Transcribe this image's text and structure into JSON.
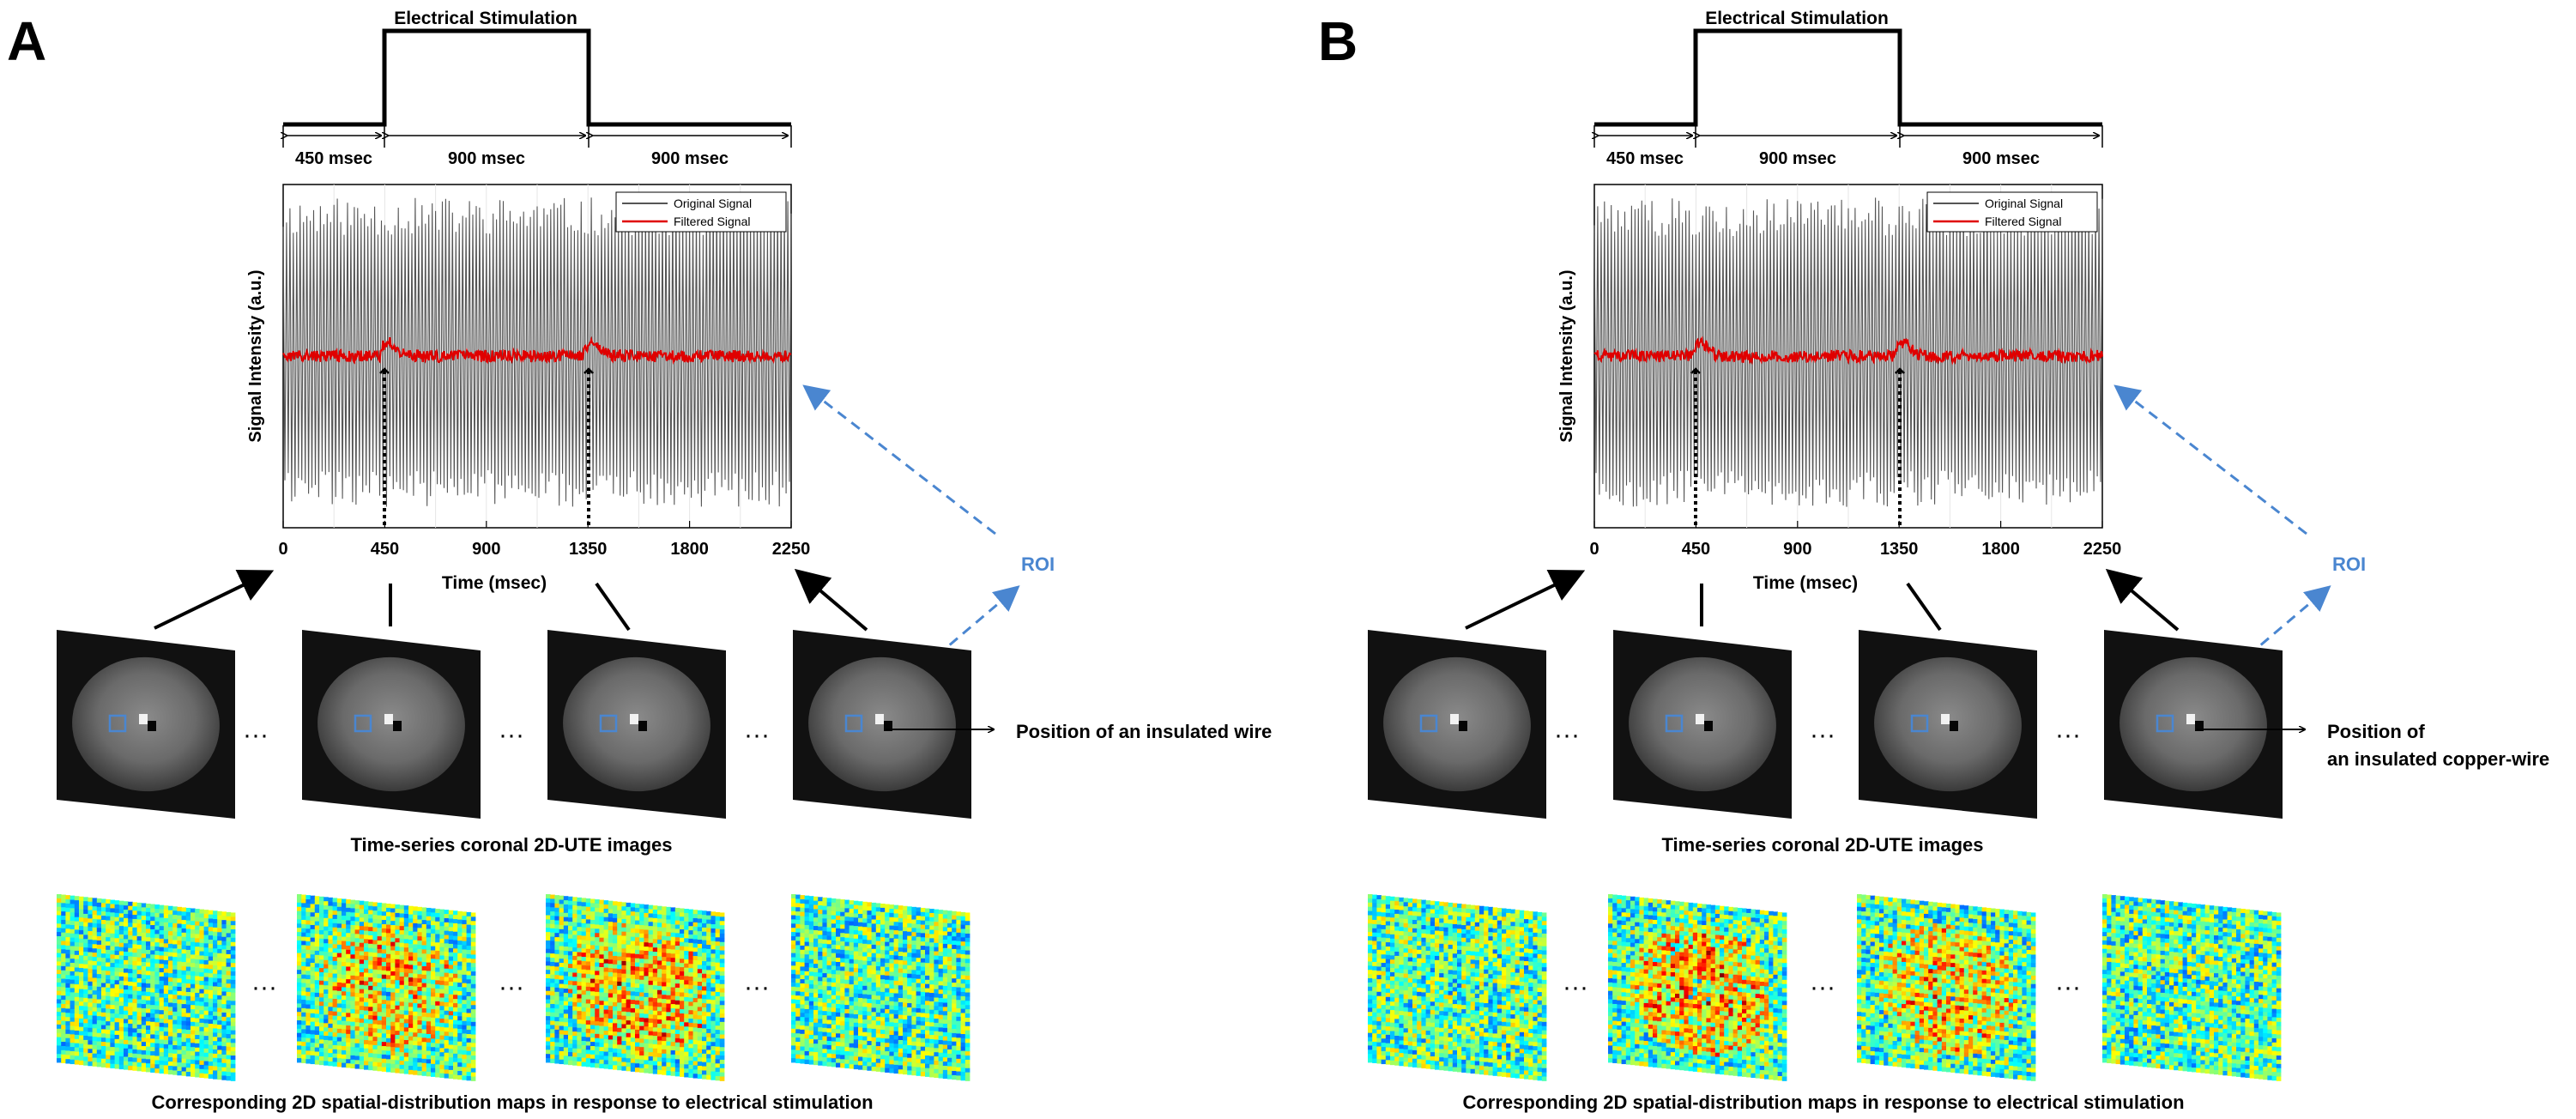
{
  "panels": [
    {
      "letter": "A",
      "stim_title": "Electrical Stimulation",
      "segments": [
        "450 msec",
        "900 msec",
        "900 msec"
      ],
      "legend": [
        "Original Signal",
        "Filtered Signal"
      ],
      "ylabel": "Signal Intensity (a.u.)",
      "xlabel": "Time (msec)",
      "xticks": [
        "0",
        "450",
        "900",
        "1350",
        "1800",
        "2250"
      ],
      "roi_label": "ROI",
      "wire_label_lines": [
        "Position of an insulated wire"
      ],
      "ute_caption": "Time-series coronal 2D-UTE images",
      "map_caption": "Corresponding 2D spatial-distribution maps in response to electrical stimulation",
      "ellipsis": "···",
      "map_activation": [
        0.1,
        0.7,
        0.85,
        0.1
      ]
    },
    {
      "letter": "B",
      "stim_title": "Electrical Stimulation",
      "segments": [
        "450 msec",
        "900 msec",
        "900 msec"
      ],
      "legend": [
        "Original Signal",
        "Filtered Signal"
      ],
      "ylabel": "Signal Intensity (a.u.)",
      "xlabel": "Time (msec)",
      "xticks": [
        "0",
        "450",
        "900",
        "1350",
        "1800",
        "2250"
      ],
      "roi_label": "ROI",
      "wire_label_lines": [
        "Position of",
        "an insulated copper-wire"
      ],
      "ute_caption": "Time-series coronal 2D-UTE images",
      "map_caption": "Corresponding 2D spatial-distribution maps in response to electrical stimulation",
      "ellipsis": "···",
      "map_activation": [
        0.1,
        0.9,
        0.75,
        0.1
      ]
    }
  ],
  "chart_data": [
    {
      "type": "line",
      "panel": "A",
      "x_range": [
        0,
        2250
      ],
      "xticks": [
        0,
        450,
        900,
        1350,
        1800,
        2250
      ],
      "stimulation_window_msec": [
        450,
        1350
      ],
      "series": [
        {
          "name": "Original Signal",
          "color": "#555555",
          "description_values": "oscillating between approx. -1.0 and +1.0 (a.u.)"
        },
        {
          "name": "Filtered Signal",
          "color": "#e00000",
          "baseline": 0,
          "peaks_msec": [
            450,
            1350
          ]
        }
      ]
    },
    {
      "type": "line",
      "panel": "B",
      "x_range": [
        0,
        2250
      ],
      "xticks": [
        0,
        450,
        900,
        1350,
        1800,
        2250
      ],
      "stimulation_window_msec": [
        450,
        1350
      ],
      "series": [
        {
          "name": "Original Signal",
          "color": "#555555"
        },
        {
          "name": "Filtered Signal",
          "color": "#e00000",
          "baseline": 0,
          "peaks_msec": [
            450,
            1350
          ]
        }
      ]
    }
  ],
  "colors": {
    "roi_blue": "#4a86d0",
    "filtered_red": "#e00000",
    "original_gray": "#555555"
  }
}
